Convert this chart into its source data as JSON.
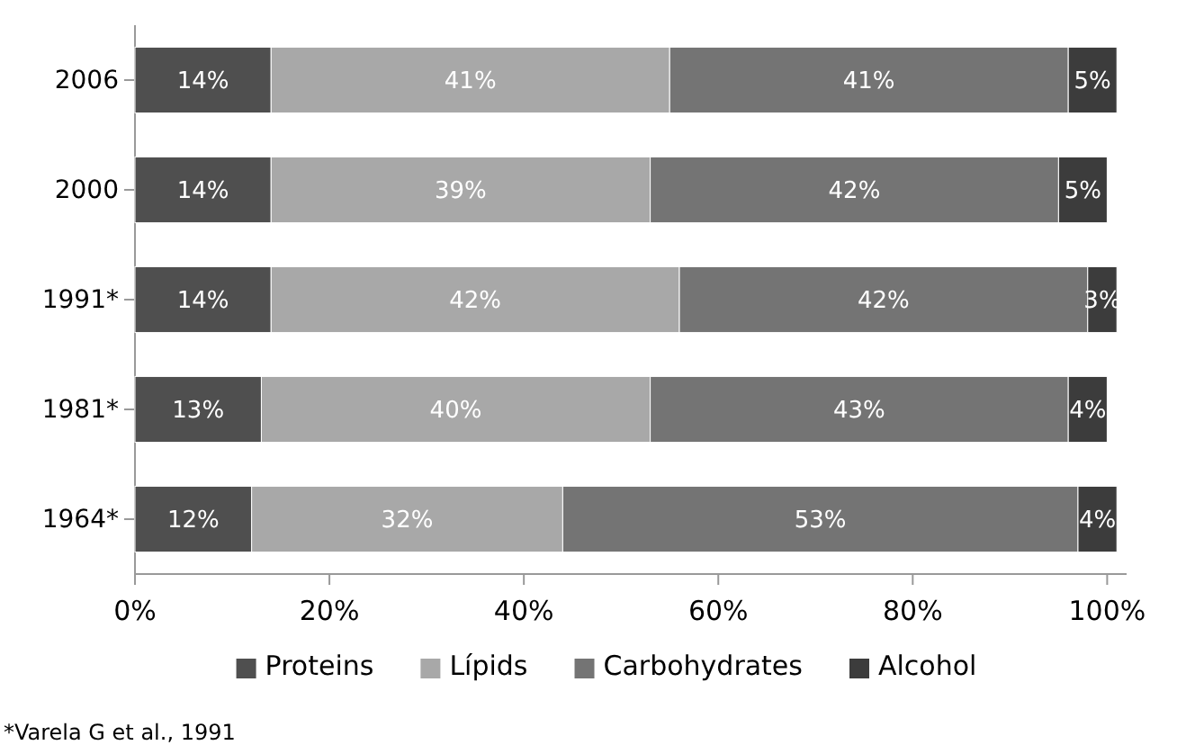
{
  "chart_data": {
    "type": "bar",
    "orientation": "horizontal",
    "stacked": true,
    "categories": [
      "2006",
      "2000",
      "1991*",
      "1981*",
      "1964*"
    ],
    "series": [
      {
        "name": "Proteins",
        "color": "#4f4f4f",
        "values": [
          14,
          14,
          14,
          13,
          12
        ],
        "value_labels": [
          "14%",
          "14%",
          "14%",
          "13%",
          "12%"
        ]
      },
      {
        "name": "Lípids",
        "color": "#a8a8a8",
        "values": [
          41,
          39,
          42,
          40,
          32
        ],
        "value_labels": [
          "41%",
          "39%",
          "42%",
          "40%",
          "32%"
        ]
      },
      {
        "name": "Carbohydrates",
        "color": "#747474",
        "values": [
          41,
          42,
          42,
          43,
          53
        ],
        "value_labels": [
          "41%",
          "42%",
          "42%",
          "43%",
          "53%"
        ]
      },
      {
        "name": "Alcohol",
        "color": "#3c3c3c",
        "values": [
          5,
          5,
          3,
          4,
          4
        ],
        "value_labels": [
          "5%",
          "5%",
          "3%",
          "4%",
          "4%"
        ]
      }
    ],
    "xlim": [
      0,
      102
    ],
    "xticks": [
      {
        "value": 0,
        "label": "0%"
      },
      {
        "value": 20,
        "label": "20%"
      },
      {
        "value": 40,
        "label": "40%"
      },
      {
        "value": 60,
        "label": "60%"
      },
      {
        "value": 80,
        "label": "80%"
      },
      {
        "value": 100,
        "label": "100%"
      }
    ],
    "legend": "bottom",
    "annotations": [
      "*Varela G et al., 1991"
    ]
  }
}
